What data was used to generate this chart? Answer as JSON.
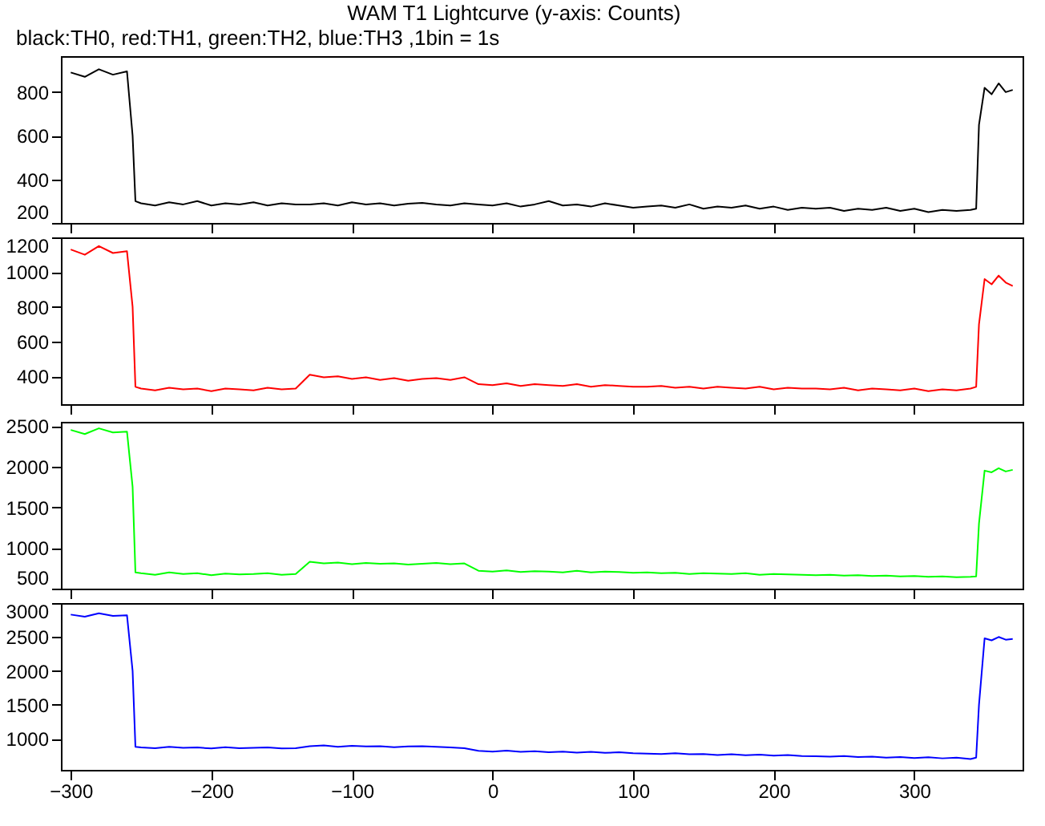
{
  "chart_data": [
    {
      "type": "line",
      "title": "WAM T1 Lightcurve (y-axis: Counts)",
      "subtitle": "black:TH0, red:TH1, green:TH2, blue:TH3 ,1bin = 1s",
      "xlim": [
        -307,
        377
      ],
      "xticks": [
        -300,
        -200,
        -100,
        0,
        100,
        200,
        300
      ],
      "ylim": [
        200,
        965
      ],
      "yticks": [
        200,
        400,
        600,
        800
      ],
      "tick_labels": "y",
      "grid": false,
      "legend": false,
      "marker": "none",
      "line_style": "solid",
      "x": [
        -300,
        -290,
        -280,
        -270,
        -260,
        -256,
        -254,
        -250,
        -240,
        -230,
        -220,
        -210,
        -200,
        -190,
        -180,
        -170,
        -160,
        -150,
        -140,
        -130,
        -120,
        -110,
        -100,
        -90,
        -80,
        -70,
        -60,
        -50,
        -40,
        -30,
        -20,
        -10,
        0,
        10,
        20,
        30,
        40,
        50,
        60,
        70,
        80,
        90,
        100,
        110,
        120,
        130,
        140,
        150,
        160,
        170,
        180,
        190,
        200,
        210,
        220,
        230,
        240,
        250,
        260,
        270,
        280,
        290,
        300,
        310,
        320,
        330,
        340,
        344,
        346,
        350,
        355,
        360,
        365,
        370
      ],
      "series": [
        {
          "color": "#000000",
          "values": [
            890,
            870,
            905,
            880,
            895,
            600,
            300,
            290,
            280,
            295,
            285,
            300,
            280,
            290,
            285,
            295,
            280,
            290,
            285,
            285,
            290,
            280,
            295,
            285,
            290,
            280,
            288,
            292,
            285,
            280,
            290,
            285,
            280,
            290,
            275,
            285,
            300,
            280,
            285,
            275,
            290,
            280,
            270,
            275,
            280,
            270,
            285,
            265,
            275,
            270,
            280,
            265,
            275,
            260,
            270,
            265,
            270,
            255,
            265,
            260,
            270,
            255,
            265,
            250,
            260,
            255,
            260,
            265,
            650,
            820,
            790,
            840,
            800,
            810
          ]
        }
      ]
    },
    {
      "type": "line",
      "xlim": [
        -307,
        377
      ],
      "xticks": [
        -300,
        -200,
        -100,
        0,
        100,
        200,
        300
      ],
      "ylim": [
        240,
        1200
      ],
      "yticks": [
        400,
        600,
        800,
        1000,
        1200
      ],
      "tick_labels": "y",
      "grid": false,
      "legend": false,
      "marker": "none",
      "line_style": "solid",
      "x": [
        -300,
        -290,
        -280,
        -270,
        -260,
        -256,
        -254,
        -250,
        -240,
        -230,
        -220,
        -210,
        -200,
        -190,
        -180,
        -170,
        -160,
        -150,
        -140,
        -130,
        -120,
        -110,
        -100,
        -90,
        -80,
        -70,
        -60,
        -50,
        -40,
        -30,
        -20,
        -10,
        0,
        10,
        20,
        30,
        40,
        50,
        60,
        70,
        80,
        90,
        100,
        110,
        120,
        130,
        140,
        150,
        160,
        170,
        180,
        190,
        200,
        210,
        220,
        230,
        240,
        250,
        260,
        270,
        280,
        290,
        300,
        310,
        320,
        330,
        340,
        344,
        346,
        350,
        355,
        360,
        365,
        370
      ],
      "series": [
        {
          "color": "#ff0000",
          "values": [
            1130,
            1100,
            1150,
            1110,
            1120,
            800,
            340,
            330,
            320,
            335,
            325,
            330,
            315,
            330,
            325,
            320,
            335,
            325,
            330,
            410,
            395,
            400,
            385,
            395,
            380,
            390,
            375,
            385,
            390,
            380,
            395,
            355,
            350,
            360,
            345,
            355,
            350,
            345,
            355,
            340,
            350,
            345,
            340,
            340,
            345,
            335,
            340,
            330,
            340,
            335,
            330,
            340,
            325,
            335,
            330,
            330,
            325,
            335,
            320,
            330,
            325,
            320,
            330,
            315,
            325,
            320,
            330,
            340,
            700,
            960,
            930,
            980,
            940,
            920
          ]
        }
      ]
    },
    {
      "type": "line",
      "xlim": [
        -307,
        377
      ],
      "xticks": [
        -300,
        -200,
        -100,
        0,
        100,
        200,
        300
      ],
      "ylim": [
        500,
        2550
      ],
      "yticks": [
        500,
        1000,
        1500,
        2000,
        2500
      ],
      "tick_labels": "y",
      "grid": false,
      "legend": false,
      "marker": "none",
      "line_style": "solid",
      "x": [
        -300,
        -290,
        -280,
        -270,
        -260,
        -256,
        -254,
        -250,
        -240,
        -230,
        -220,
        -210,
        -200,
        -190,
        -180,
        -170,
        -160,
        -150,
        -140,
        -130,
        -120,
        -110,
        -100,
        -90,
        -80,
        -70,
        -60,
        -50,
        -40,
        -30,
        -20,
        -10,
        0,
        10,
        20,
        30,
        40,
        50,
        60,
        70,
        80,
        90,
        100,
        110,
        120,
        130,
        140,
        150,
        160,
        170,
        180,
        190,
        200,
        210,
        220,
        230,
        240,
        250,
        260,
        270,
        280,
        290,
        300,
        310,
        320,
        330,
        340,
        344,
        346,
        350,
        355,
        360,
        365,
        370
      ],
      "series": [
        {
          "color": "#00ff00",
          "values": [
            2450,
            2400,
            2470,
            2420,
            2430,
            1750,
            700,
            690,
            670,
            700,
            680,
            690,
            665,
            685,
            675,
            680,
            690,
            670,
            680,
            830,
            810,
            820,
            800,
            815,
            805,
            810,
            795,
            805,
            815,
            800,
            810,
            720,
            710,
            725,
            705,
            715,
            710,
            700,
            720,
            700,
            710,
            705,
            695,
            700,
            690,
            695,
            680,
            690,
            685,
            680,
            690,
            670,
            680,
            675,
            670,
            665,
            670,
            660,
            665,
            655,
            660,
            650,
            655,
            645,
            650,
            640,
            645,
            650,
            1300,
            1950,
            1930,
            1980,
            1940,
            1960
          ]
        }
      ]
    },
    {
      "type": "line",
      "xlim": [
        -307,
        377
      ],
      "xticks": [
        -300,
        -200,
        -100,
        0,
        100,
        200,
        300
      ],
      "ylim": [
        540,
        3000
      ],
      "yticks": [
        1000,
        1500,
        2000,
        2500,
        3000
      ],
      "grid": false,
      "legend": false,
      "marker": "none",
      "line_style": "solid",
      "x": [
        -300,
        -290,
        -280,
        -270,
        -260,
        -256,
        -254,
        -250,
        -240,
        -230,
        -220,
        -210,
        -200,
        -190,
        -180,
        -170,
        -160,
        -150,
        -140,
        -130,
        -120,
        -110,
        -100,
        -90,
        -80,
        -70,
        -60,
        -50,
        -40,
        -30,
        -20,
        -10,
        0,
        10,
        20,
        30,
        40,
        50,
        60,
        70,
        80,
        90,
        100,
        110,
        120,
        130,
        140,
        150,
        160,
        170,
        180,
        190,
        200,
        210,
        220,
        230,
        240,
        250,
        260,
        270,
        280,
        290,
        300,
        310,
        320,
        330,
        340,
        344,
        346,
        350,
        355,
        360,
        365,
        370
      ],
      "series": [
        {
          "color": "#0000ff",
          "values": [
            2830,
            2800,
            2850,
            2810,
            2820,
            2000,
            880,
            870,
            860,
            880,
            865,
            870,
            855,
            875,
            860,
            865,
            870,
            855,
            860,
            890,
            900,
            880,
            895,
            885,
            890,
            875,
            885,
            890,
            880,
            870,
            860,
            820,
            810,
            825,
            805,
            815,
            800,
            810,
            795,
            805,
            790,
            800,
            785,
            780,
            775,
            785,
            770,
            775,
            760,
            770,
            755,
            765,
            750,
            760,
            745,
            740,
            735,
            745,
            730,
            735,
            720,
            730,
            715,
            725,
            710,
            720,
            700,
            720,
            1500,
            2480,
            2450,
            2500,
            2460,
            2470
          ]
        }
      ]
    }
  ]
}
